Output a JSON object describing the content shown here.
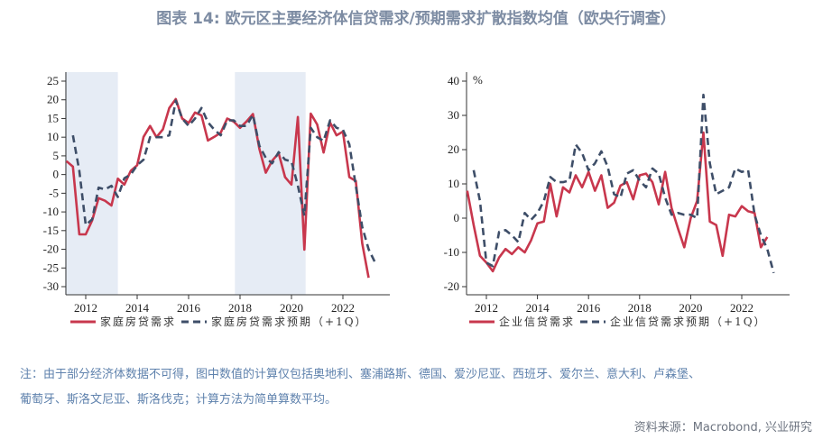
{
  "title": "图表 14: 欧元区主要经济体信贷需求/预期需求扩散指数均值（欧央行调查）",
  "note_line1": "注：由于部分经济体数据不可得，图中数值的计算仅包括奥地利、塞浦路斯、德国、爱沙尼亚、西班牙、爱尔兰、意大利、卢森堡、",
  "note_line2": "葡萄牙、斯洛文尼亚、斯洛伐克；计算方法为简单算数平均。",
  "source": "资料来源：Macrobond, 兴业研究",
  "colors": {
    "actual": "#c8374d",
    "expected": "#3e4e68",
    "shade": "#e6ecf5"
  },
  "chart_data": [
    {
      "type": "line",
      "x_unit": "quarter",
      "ylim": [
        -30,
        25
      ],
      "yticks": [
        25,
        20,
        15,
        10,
        5,
        0,
        -5,
        -10,
        -15,
        -20,
        -25,
        -30
      ],
      "xticks": [
        "2012",
        "2014",
        "2016",
        "2018",
        "2020",
        "2022"
      ],
      "xlim": [
        2011.2,
        2023.6
      ],
      "ylabel": "",
      "shaded_periods": [
        [
          2011.2,
          2013.25
        ],
        [
          2017.8,
          2020.55
        ]
      ],
      "legend": "bottom",
      "series": [
        {
          "name": "家庭房贷需求",
          "start": "2011Q2",
          "style": "solid",
          "values": [
            3.6,
            2.1,
            -16,
            -16,
            -12.3,
            -6.3,
            -7,
            -8.3,
            -1.1,
            -2.7,
            1,
            2.5,
            10.1,
            13,
            10,
            12.1,
            17.8,
            20.2,
            15,
            13.8,
            16.6,
            15.8,
            9.1,
            10.1,
            11.2,
            15,
            14.2,
            12.5,
            14.2,
            16.2,
            6.9,
            0.5,
            3.7,
            5.7,
            -0.7,
            -2.7,
            15.4,
            -20.1,
            16.3,
            13.4,
            5.9,
            13.9,
            10.5,
            11.5,
            -0.7,
            -1.7,
            -18.4,
            -27.6
          ]
        },
        {
          "name": "家庭房贷需求预期（+1Q）",
          "start": "2011Q3",
          "style": "dashed",
          "values": [
            10.5,
            1,
            -13.5,
            -12,
            -3.5,
            -4,
            -3,
            -6,
            -1,
            0,
            2.5,
            4,
            10,
            10,
            10,
            10.5,
            19.8,
            15,
            13,
            15,
            17.8,
            14,
            12,
            10.5,
            14.5,
            14.5,
            13,
            13,
            16,
            7.7,
            4.5,
            3,
            6,
            4,
            3.5,
            -3,
            -11,
            12.5,
            10,
            9,
            14.5,
            12.5,
            12,
            8.1,
            -3,
            -14,
            -20,
            -23.5
          ]
        }
      ]
    },
    {
      "type": "line",
      "x_unit": "quarter",
      "ylim": [
        -20,
        40
      ],
      "yticks": [
        40,
        30,
        20,
        10,
        0,
        -10,
        -20
      ],
      "xticks": [
        "2012",
        "2014",
        "2016",
        "2018",
        "2020",
        "2022"
      ],
      "xlim": [
        2011.2,
        2023.8
      ],
      "ylabel": "%",
      "legend": "bottom",
      "series": [
        {
          "name": "企业信贷需求",
          "start": "2011Q2",
          "style": "solid",
          "values": [
            8,
            -2,
            -11,
            -13,
            -15.5,
            -11.5,
            -9,
            -10.5,
            -8.5,
            -10,
            -6.5,
            -1.5,
            -1,
            10,
            0.5,
            9,
            7.5,
            12.5,
            9,
            13.5,
            8,
            12.5,
            3,
            4.5,
            9.5,
            10.5,
            5.5,
            12.5,
            13,
            10.5,
            4,
            13.5,
            3,
            -3,
            -8.5,
            0,
            5,
            25,
            -1,
            -2,
            -11,
            1,
            0.5,
            3.5,
            2,
            1.5,
            -8.5,
            -5.5
          ]
        },
        {
          "name": "企业信贷需求预期（+1Q）",
          "start": "2011Q3",
          "style": "dashed",
          "values": [
            14,
            5,
            -13,
            -14,
            -4,
            -3.5,
            -5,
            -7,
            1.5,
            -0.5,
            1.5,
            5,
            12,
            10.5,
            10.5,
            11,
            21.5,
            19,
            14,
            16,
            19.5,
            15,
            7,
            6,
            13,
            14,
            11,
            9,
            14.5,
            13,
            6,
            1,
            1.5,
            1,
            1,
            0,
            36,
            16,
            7,
            8,
            9,
            14.5,
            13.5,
            14,
            1,
            -5,
            -9,
            -16
          ]
        }
      ]
    }
  ]
}
